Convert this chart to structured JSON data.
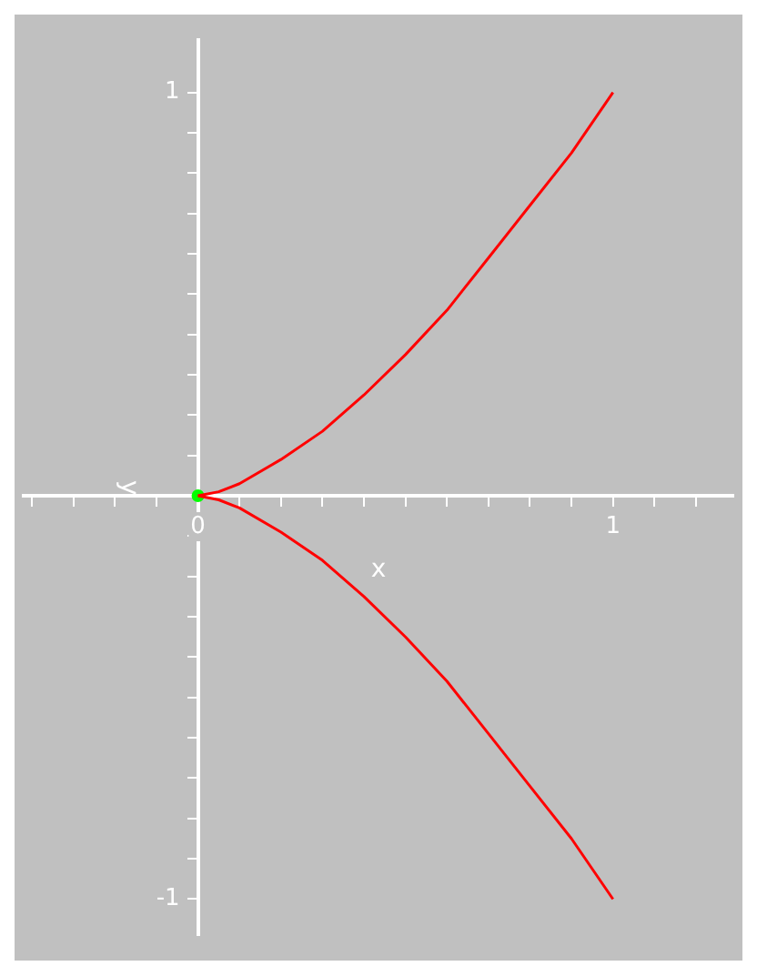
{
  "chart_data": {
    "type": "line",
    "xlabel": "x",
    "ylabel": "y",
    "grid": false,
    "legend": false,
    "marker": "none",
    "line_style": "solid",
    "xlim": [
      -0.42,
      1.29
    ],
    "ylim": [
      -1.09,
      1.13
    ],
    "xticks": [
      {
        "value": -0.4,
        "label": null
      },
      {
        "value": -0.3,
        "label": null
      },
      {
        "value": -0.2,
        "label": null
      },
      {
        "value": -0.1,
        "label": null
      },
      {
        "value": 0,
        "label": "0"
      },
      {
        "value": 0.1,
        "label": null
      },
      {
        "value": 0.2,
        "label": null
      },
      {
        "value": 0.3,
        "label": null
      },
      {
        "value": 0.4,
        "label": null
      },
      {
        "value": 0.5,
        "label": null
      },
      {
        "value": 0.6,
        "label": null
      },
      {
        "value": 0.7,
        "label": null
      },
      {
        "value": 0.8,
        "label": null
      },
      {
        "value": 0.9,
        "label": null
      },
      {
        "value": 1,
        "label": "1"
      },
      {
        "value": 1.1,
        "label": null
      },
      {
        "value": 1.2,
        "label": null
      }
    ],
    "yticks": [
      {
        "value": -1,
        "label": "-1"
      },
      {
        "value": -0.9,
        "label": null
      },
      {
        "value": -0.8,
        "label": null
      },
      {
        "value": -0.7,
        "label": null
      },
      {
        "value": -0.6,
        "label": null
      },
      {
        "value": -0.5,
        "label": null
      },
      {
        "value": -0.4,
        "label": null
      },
      {
        "value": -0.3,
        "label": null
      },
      {
        "value": -0.2,
        "label": null
      },
      {
        "value": -0.1,
        "label": null
      },
      {
        "value": 0.1,
        "label": null
      },
      {
        "value": 0.2,
        "label": null
      },
      {
        "value": 0.3,
        "label": null
      },
      {
        "value": 0.4,
        "label": null
      },
      {
        "value": 0.5,
        "label": null
      },
      {
        "value": 0.6,
        "label": null
      },
      {
        "value": 0.7,
        "label": null
      },
      {
        "value": 0.8,
        "label": null
      },
      {
        "value": 0.9,
        "label": null
      },
      {
        "value": 1,
        "label": "1"
      }
    ],
    "series": [
      {
        "color": "#ff0000",
        "x": [
          0,
          0.05,
          0.1,
          0.2,
          0.3,
          0.4,
          0.5,
          0.6,
          0.7,
          0.8,
          0.9,
          1
        ],
        "values": [
          0,
          0.01,
          0.03,
          0.09,
          0.16,
          0.25,
          0.35,
          0.46,
          0.59,
          0.72,
          0.85,
          1
        ]
      },
      {
        "color": "#ff0000",
        "x": [
          0,
          0.05,
          0.1,
          0.2,
          0.3,
          0.4,
          0.5,
          0.6,
          0.7,
          0.8,
          0.9,
          1
        ],
        "values": [
          0,
          -0.01,
          -0.03,
          -0.09,
          -0.16,
          -0.25,
          -0.35,
          -0.46,
          -0.59,
          -0.72,
          -0.85,
          -1
        ]
      },
      {
        "type": "scatter",
        "marker": "circle",
        "color": "#00ff00",
        "x": [
          0
        ],
        "values": [
          0
        ]
      }
    ]
  }
}
